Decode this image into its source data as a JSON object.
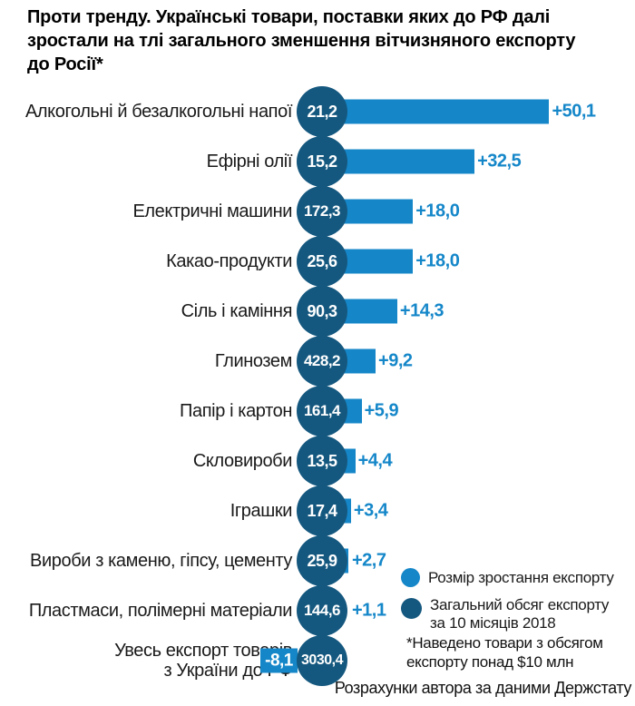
{
  "title": "Проти тренду. Українські товари, поставки яких до РФ далі зростали на тлі загального зменшення вітчизняного експорту до Росії*",
  "title_lines": [
    "Проти тренду. Українські товари, поставки яких до РФ далі",
    "зростали на тлі загального зменшення вітчизняного експорту",
    "до Росії*"
  ],
  "colors": {
    "growth_bar": "#1587c9",
    "total_circle": "#15587f",
    "growth_text": "#1587c9",
    "title_text": "#000000",
    "label_text": "#1a1a1a",
    "background": "#ffffff"
  },
  "chart_data": {
    "type": "bar",
    "orientation": "horizontal",
    "grid": false,
    "axes_visible": false,
    "legend_position": "bottom-right",
    "growth_axis_range_pct": [
      -8.1,
      50.1
    ],
    "rows": [
      {
        "category": "Алкогольні й безалкогольні напої",
        "category_lines": [
          "Алкогольні й безалкогольні напої"
        ],
        "total_export": 21.2,
        "total_label": "21,2",
        "growth_pct": 50.1,
        "growth_label": "+50,1"
      },
      {
        "category": "Ефірні олії",
        "category_lines": [
          "Ефірні олії"
        ],
        "total_export": 15.2,
        "total_label": "15,2",
        "growth_pct": 32.5,
        "growth_label": "+32,5"
      },
      {
        "category": "Електричні машини",
        "category_lines": [
          "Електричні машини"
        ],
        "total_export": 172.3,
        "total_label": "172,3",
        "growth_pct": 18.0,
        "growth_label": "+18,0"
      },
      {
        "category": "Какао-продукти",
        "category_lines": [
          "Какао-продукти"
        ],
        "total_export": 25.6,
        "total_label": "25,6",
        "growth_pct": 18.0,
        "growth_label": "+18,0"
      },
      {
        "category": "Сіль і каміння",
        "category_lines": [
          "Сіль і каміння"
        ],
        "total_export": 90.3,
        "total_label": "90,3",
        "growth_pct": 14.3,
        "growth_label": "+14,3"
      },
      {
        "category": "Глинозем",
        "category_lines": [
          "Глинозем"
        ],
        "total_export": 428.2,
        "total_label": "428,2",
        "growth_pct": 9.2,
        "growth_label": "+9,2"
      },
      {
        "category": "Папір і картон",
        "category_lines": [
          "Папір і картон"
        ],
        "total_export": 161.4,
        "total_label": "161,4",
        "growth_pct": 5.9,
        "growth_label": "+5,9"
      },
      {
        "category": "Скловироби",
        "category_lines": [
          "Скловироби"
        ],
        "total_export": 13.5,
        "total_label": "13,5",
        "growth_pct": 4.4,
        "growth_label": "+4,4"
      },
      {
        "category": "Іграшки",
        "category_lines": [
          "Іграшки"
        ],
        "total_export": 17.4,
        "total_label": "17,4",
        "growth_pct": 3.4,
        "growth_label": "+3,4"
      },
      {
        "category": "Вироби з каменю, гіпсу, цементу",
        "category_lines": [
          "Вироби з каменю, гіпсу, цементу"
        ],
        "total_export": 25.9,
        "total_label": "25,9",
        "growth_pct": 2.7,
        "growth_label": "+2,7"
      },
      {
        "category": "Пластмаси, полімерні матеріали",
        "category_lines": [
          "Пластмаси, полімерні матеріали"
        ],
        "total_export": 144.6,
        "total_label": "144,6",
        "growth_pct": 1.1,
        "growth_label": "+1,1"
      },
      {
        "category": "Увесь експорт товарів з України до РФ",
        "category_lines": [
          "Увесь експорт товарів",
          "з України до РФ"
        ],
        "total_export": 3030.4,
        "total_label": "3030,4",
        "growth_pct": -8.1,
        "growth_label": "-8,1"
      }
    ],
    "legend": [
      {
        "label": "Розмір зростання експорту",
        "lines": [
          "Розмір зростання експорту"
        ],
        "color": "#1587c9",
        "marker": "circle"
      },
      {
        "label": "Загальний обсяг експорту за 10 місяців 2018",
        "lines": [
          "Загальний обсяг експорту",
          "за 10 місяців 2018"
        ],
        "color": "#15587f",
        "marker": "circle"
      }
    ],
    "footnote": "*Наведено товари з обсягом експорту понад $10 млн",
    "footnote_lines": [
      "*Наведено товари з обсягом",
      "експорту понад $10 млн"
    ],
    "source": "Розрахунки автора за даними Держстату"
  }
}
